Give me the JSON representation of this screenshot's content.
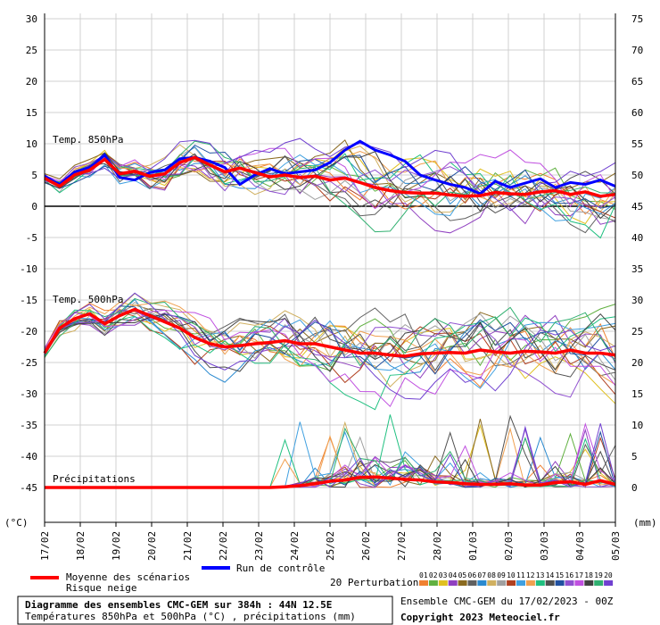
{
  "chart_data": {
    "type": "line",
    "x_labels": [
      "17/02",
      "18/02",
      "19/02",
      "20/02",
      "21/02",
      "22/02",
      "23/02",
      "24/02",
      "25/02",
      "26/02",
      "27/02",
      "28/02",
      "01/03",
      "02/03",
      "03/03",
      "04/03",
      "05/03"
    ],
    "left_axis": {
      "unit": "(°C)",
      "ticks": [
        30,
        25,
        20,
        15,
        10,
        5,
        0,
        -5,
        -10,
        -15,
        -20,
        -25,
        -30,
        -35,
        -40,
        -45
      ],
      "ylim": [
        -45,
        30
      ]
    },
    "right_axis": {
      "unit": "(mm)",
      "ticks": [
        75,
        70,
        65,
        60,
        55,
        50,
        45,
        40,
        35,
        30,
        25,
        20,
        15,
        10,
        5,
        0
      ],
      "ylim": [
        0,
        75
      ]
    },
    "panel_labels": {
      "t850": "Temp. 850hPa",
      "t500": "Temp. 500hPa",
      "precip": "Précipitations"
    },
    "t850_mean": [
      4.5,
      3.2,
      5.0,
      5.8,
      7.5,
      5.2,
      5.6,
      4.8,
      5.2,
      7.0,
      7.8,
      6.6,
      5.5,
      6.1,
      5.4,
      4.7,
      5.0,
      4.6,
      4.8,
      4.2,
      4.5,
      3.8,
      3.0,
      2.5,
      2.2,
      2.1,
      2.1,
      1.8,
      1.6,
      1.7,
      2.2,
      2.0,
      1.9,
      2.3,
      2.5,
      1.9,
      2.3,
      1.6,
      1.9
    ],
    "t850_control": [
      4.8,
      3.5,
      5.5,
      6.2,
      8.2,
      4.6,
      4.2,
      5.4,
      5.8,
      7.6,
      7.8,
      7.2,
      6.2,
      3.5,
      5.0,
      6.0,
      5.2,
      5.5,
      5.8,
      7.0,
      9.0,
      10.4,
      9.0,
      8.2,
      7.2,
      5.0,
      4.2,
      3.5,
      3.0,
      2.0,
      4.0,
      3.0,
      3.7,
      4.4,
      3.0,
      3.8,
      3.5,
      4.2,
      3.2
    ],
    "t500_mean": [
      -23.5,
      -19.5,
      -18.0,
      -17.2,
      -18.8,
      -17.5,
      -16.5,
      -17.5,
      -18.5,
      -19.5,
      -21.0,
      -22.0,
      -22.5,
      -22.3,
      -22.0,
      -21.8,
      -21.5,
      -22.0,
      -22.0,
      -22.5,
      -23.0,
      -23.5,
      -23.5,
      -23.8,
      -24.0,
      -23.6,
      -23.5,
      -23.4,
      -23.5,
      -23.0,
      -23.3,
      -23.5,
      -23.2,
      -23.3,
      -23.5,
      -23.0,
      -23.5,
      -23.5,
      -23.8
    ],
    "precip_mean": [
      0,
      0,
      0,
      0,
      0,
      0,
      0,
      0,
      0,
      0,
      0,
      0,
      0,
      0,
      0,
      0,
      0.1,
      0.3,
      0.6,
      1.0,
      1.2,
      1.6,
      1.7,
      1.5,
      1.3,
      1.2,
      0.9,
      0.8,
      0.6,
      0.5,
      0.5,
      0.6,
      0.4,
      0.4,
      0.8,
      0.9,
      0.5,
      1.1,
      0.5
    ],
    "perturbation_colors": [
      "#f08030",
      "#60b040",
      "#e0c020",
      "#9040c0",
      "#8a6a20",
      "#606060",
      "#2a8ad0",
      "#d0b060",
      "#a0a0a0",
      "#b04020",
      "#40a0e0",
      "#f0a050",
      "#20c080",
      "#505050",
      "#2050a0",
      "#9050d0",
      "#c050e0",
      "#404040",
      "#30b070",
      "#7040d0"
    ],
    "legend": {
      "mean_label": "Moyenne des scénarios",
      "snow_label": "Risque neige",
      "control_label": "Run de contrôle",
      "perturb_label": "20 Perturbations",
      "perturb_numbers": [
        "01",
        "02",
        "03",
        "04",
        "05",
        "06",
        "07",
        "08",
        "09",
        "10",
        "11",
        "12",
        "13",
        "14",
        "15",
        "16",
        "17",
        "18",
        "19",
        "20"
      ],
      "mean_color": "#ff0000",
      "control_color": "#0000ff"
    }
  },
  "footer": {
    "title": "Diagramme des ensembles CMC-GEM sur 384h : 44N 12.5E",
    "subtitle": "Températures 850hPa et 500hPa (°C) , précipitations (mm)",
    "run_info": "Ensemble CMC-GEM du 17/02/2023 - 00Z",
    "copyright": "Copyright 2023 Meteociel.fr"
  }
}
